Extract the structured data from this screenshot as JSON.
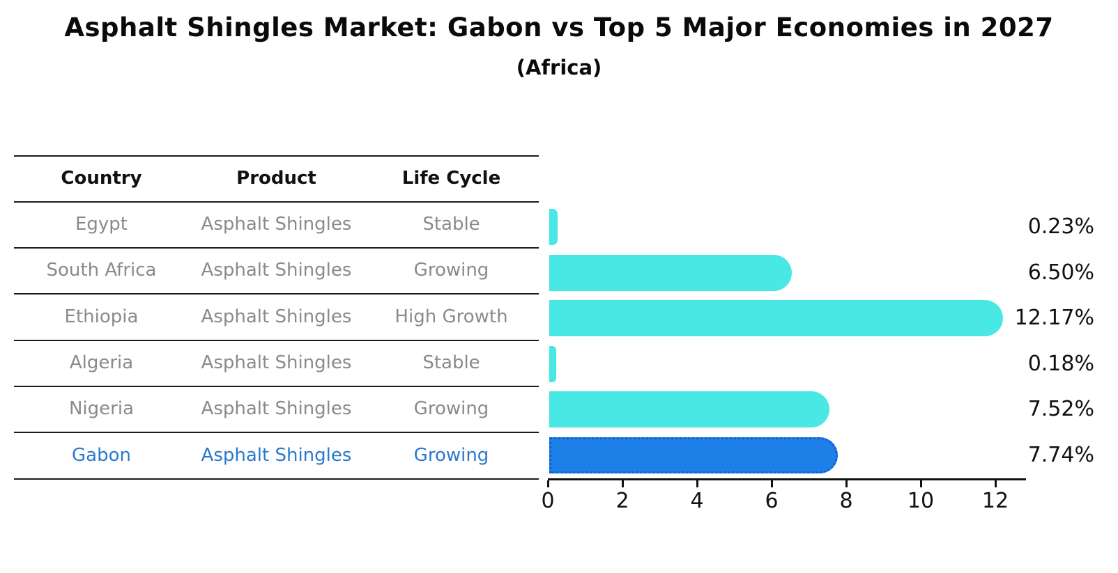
{
  "title": "Asphalt Shingles Market: Gabon vs Top 5 Major Economies in 2027",
  "subtitle": "(Africa)",
  "table": {
    "headers": [
      "Country",
      "Product",
      "Life Cycle"
    ],
    "rows": [
      {
        "country": "Egypt",
        "product": "Asphalt Shingles",
        "life_cycle": "Stable",
        "highlight": false
      },
      {
        "country": "South Africa",
        "product": "Asphalt Shingles",
        "life_cycle": "Growing",
        "highlight": false
      },
      {
        "country": "Ethiopia",
        "product": "Asphalt Shingles",
        "life_cycle": "High Growth",
        "highlight": false
      },
      {
        "country": "Algeria",
        "product": "Asphalt Shingles",
        "life_cycle": "Stable",
        "highlight": false
      },
      {
        "country": "Nigeria",
        "product": "Asphalt Shingles",
        "life_cycle": "Growing",
        "highlight": false
      },
      {
        "country": "Gabon",
        "product": "Asphalt Shingles",
        "life_cycle": "Growing",
        "highlight": true
      }
    ]
  },
  "chart_data": {
    "type": "bar",
    "orientation": "horizontal",
    "categories": [
      "Egypt",
      "South Africa",
      "Ethiopia",
      "Algeria",
      "Nigeria",
      "Gabon"
    ],
    "values": [
      0.23,
      6.5,
      12.17,
      0.18,
      7.52,
      7.74
    ],
    "value_labels": [
      "0.23%",
      "6.50%",
      "12.17%",
      "0.18%",
      "7.52%",
      "7.74%"
    ],
    "x_ticks": [
      "0",
      "2",
      "4",
      "6",
      "8",
      "10",
      "12"
    ],
    "xlim": [
      0,
      12.8
    ],
    "grid": false,
    "legend": "none",
    "highlight_index": 5,
    "bar_color": "#49E8E4",
    "highlight_bar_color": "#1E7FE8",
    "highlight_border_color": "#0B5FD6",
    "table_text_color": "#8a8a8a",
    "highlight_text_color": "#2979cf"
  }
}
